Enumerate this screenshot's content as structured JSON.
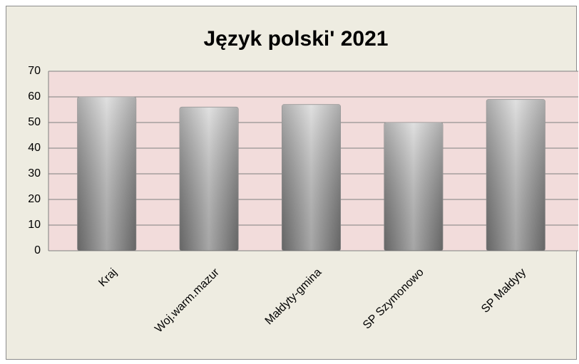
{
  "chart_data": {
    "type": "bar",
    "title": "Język polski' 2021",
    "categories": [
      "Kraj",
      "Woj.warm.mazur",
      "Małdyty-gmina",
      "SP Szymonowo",
      "SP Małdyty"
    ],
    "values": [
      60,
      56,
      57,
      50,
      59
    ],
    "color": "#a6a6a6",
    "ylim": [
      0,
      70
    ],
    "yticks": [
      0,
      10,
      20,
      30,
      40,
      50,
      60,
      70
    ],
    "grid": true
  }
}
